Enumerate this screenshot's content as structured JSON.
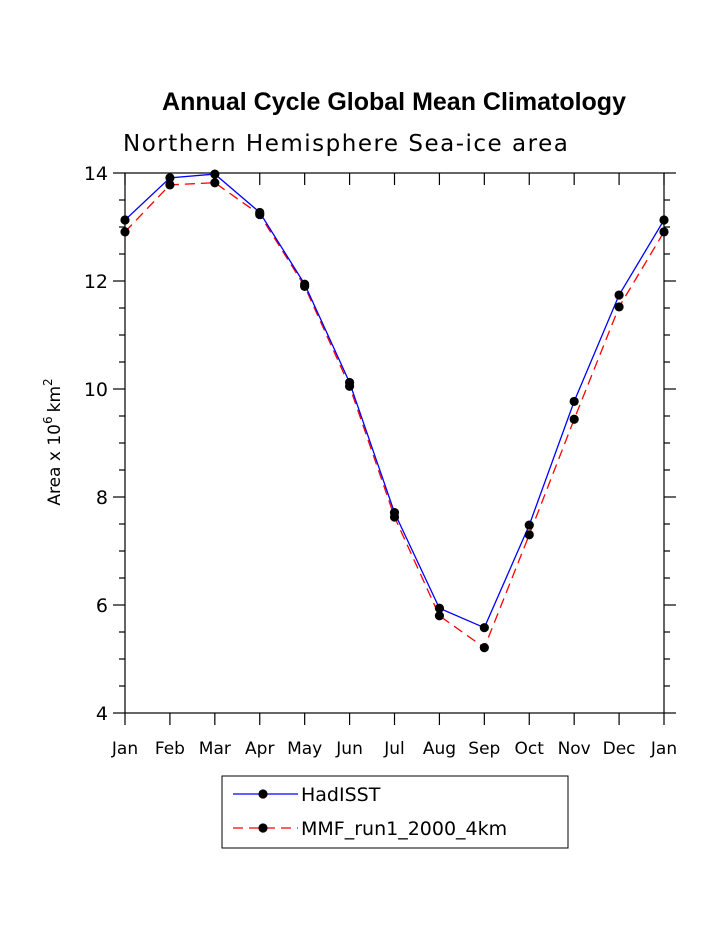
{
  "chart_data": {
    "type": "line",
    "title": "Annual Cycle Global Mean Climatology",
    "subtitle": "Northern Hemisphere Sea-ice area",
    "ylabel_prefix": "Area x 10",
    "ylabel_exponent": "6",
    "ylabel_unit": "km",
    "ylabel_unit_exponent": "2",
    "categories": [
      "Jan",
      "Feb",
      "Mar",
      "Apr",
      "May",
      "Jun",
      "Jul",
      "Aug",
      "Sep",
      "Oct",
      "Nov",
      "Dec",
      "Jan"
    ],
    "ylim": [
      4,
      14
    ],
    "yticks": [
      4,
      6,
      8,
      10,
      12,
      14
    ],
    "yticks_minor_step": 0.5,
    "grid": false,
    "legend_position": "bottom",
    "series": [
      {
        "name": "HadISST",
        "color": "#0000ff",
        "dash": "solid",
        "values": [
          13.13,
          13.91,
          13.98,
          13.27,
          11.94,
          10.12,
          7.71,
          5.94,
          5.58,
          7.48,
          9.77,
          11.74,
          13.13
        ]
      },
      {
        "name": "MMF_run1_2000_4km",
        "color": "#ff0000",
        "dash": "dashed",
        "values": [
          12.91,
          13.78,
          13.82,
          13.23,
          11.9,
          10.05,
          7.63,
          5.8,
          5.21,
          7.3,
          9.44,
          11.52,
          12.91
        ]
      }
    ]
  }
}
